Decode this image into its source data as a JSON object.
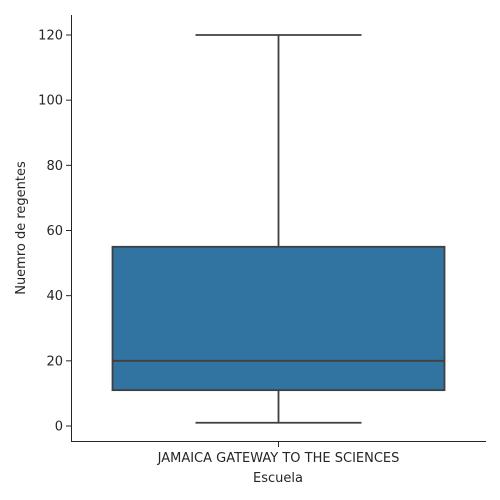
{
  "chart_data": {
    "type": "box",
    "xlabel": "Escuela",
    "ylabel": "Nuemro de regentes",
    "categories": [
      "JAMAICA GATEWAY TO THE SCIENCES"
    ],
    "boxes": [
      {
        "category": "JAMAICA GATEWAY TO THE SCIENCES",
        "whisker_low": 1,
        "q1": 11,
        "median": 20,
        "q3": 55,
        "whisker_high": 120
      }
    ],
    "ylim": [
      -5,
      126
    ],
    "yticks": [
      0,
      20,
      40,
      60,
      80,
      100,
      120
    ],
    "grid": false,
    "box_color": "#3274a1",
    "line_color": "#3f3f3f"
  }
}
